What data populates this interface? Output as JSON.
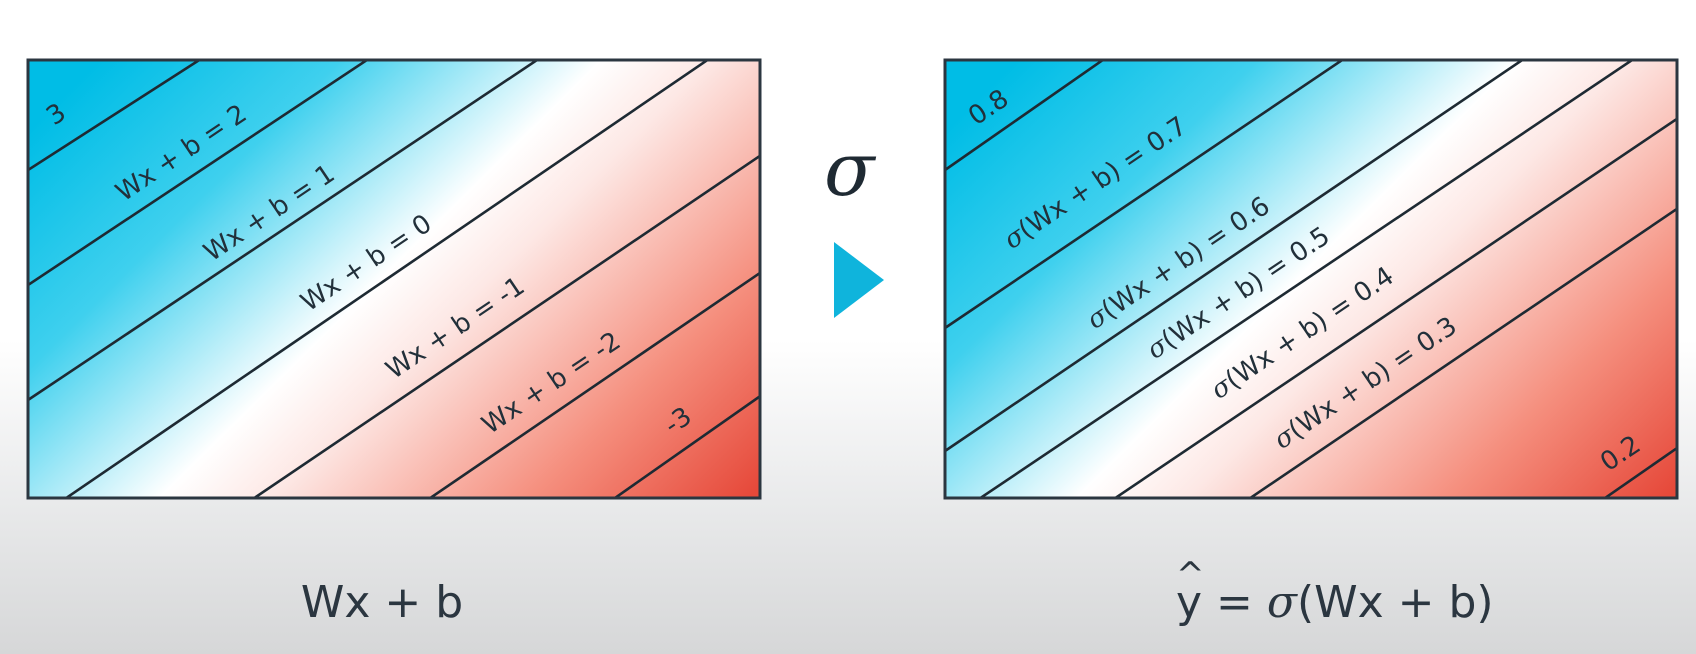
{
  "left_panel": {
    "corner_top_left": "3",
    "corner_bottom_right": "-3",
    "contour_labels": [
      "Wx + b = 2",
      "Wx + b = 1",
      "Wx + b = 0",
      "Wx + b = -1",
      "Wx + b = -2"
    ],
    "caption": "Wx + b"
  },
  "arrow": {
    "symbol": "σ"
  },
  "right_panel": {
    "corner_top_left": "0.8",
    "corner_bottom_right": "0.2",
    "contour_label_prefix": "σ",
    "contour_labels": [
      "(Wx + b) = 0.7",
      "(Wx + b) = 0.6",
      "(Wx + b) = 0.5",
      "(Wx + b) = 0.4",
      "(Wx + b) = 0.3"
    ],
    "caption_hat": "^",
    "caption_y": "y",
    "caption_eq": " = ",
    "caption_sigma": "σ",
    "caption_rest": "(Wx + b)"
  },
  "colors": {
    "blue": "#00c3e8",
    "white": "#ffffff",
    "red": "#e94d3c",
    "arrow": "#0fb4dc",
    "line": "#1e2a33"
  }
}
